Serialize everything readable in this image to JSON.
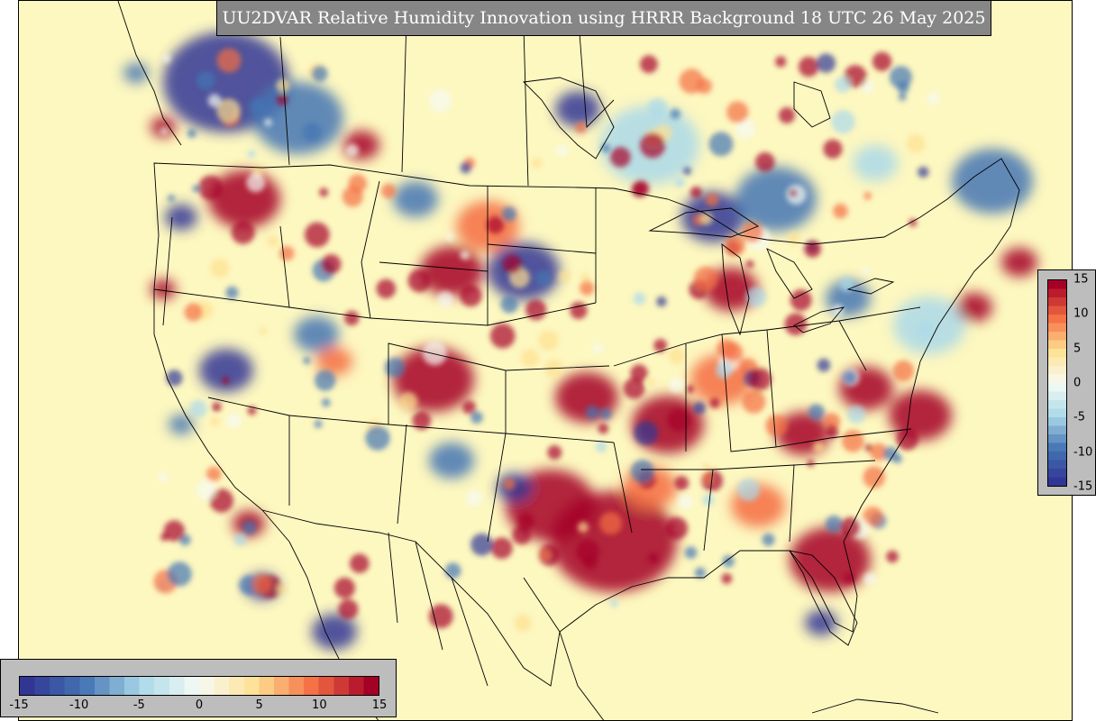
{
  "title": "UU2DVAR Relative Humidity Innovation using HRRR Background 18 UTC 26 May 2025",
  "colorbar": {
    "min": -15,
    "max": 15,
    "horizontal_ticks": [
      "-15",
      "-10",
      "-5",
      "0",
      "5",
      "10",
      "15"
    ],
    "vertical_ticks": [
      "15",
      "10",
      "5",
      "0",
      "-5",
      "-10",
      "-15"
    ],
    "colormap": "RdYlBu_r",
    "colors": {
      "neg_max": "#313695",
      "neg_mid": "#4575b4",
      "neg_low": "#abd9e9",
      "near_zero": "#f7fbf4",
      "pos_low": "#fee090",
      "pos_mid": "#f46d43",
      "pos_max": "#a50026",
      "background": "#fdf7c0"
    }
  }
}
